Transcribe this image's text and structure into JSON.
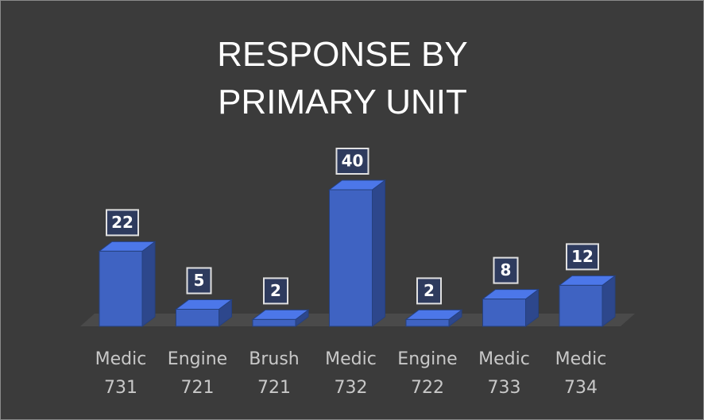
{
  "chart_data": {
    "type": "bar3d",
    "title": "RESPONSE BY PRIMARY UNIT",
    "categories": [
      "Medic 731",
      "Engine 721",
      "Brush 721",
      "Medic 732",
      "Engine 722",
      "Medic 733",
      "Medic 734"
    ],
    "values": [
      22,
      5,
      2,
      40,
      2,
      8,
      12
    ],
    "color": "#3f63c2"
  }
}
